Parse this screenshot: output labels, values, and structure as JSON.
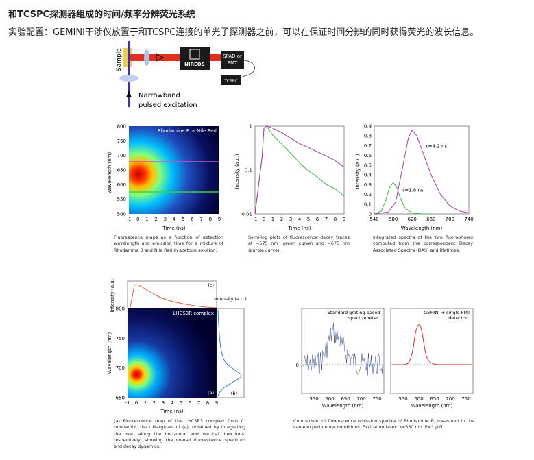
{
  "heading": "和TCSPC探测器组成的时间/频率分辨荧光系统",
  "description": "实验配置：GEMINI干涉仪放置于和TCSPC连接的单光子探测器之前，可以在保证时间分辨的同时获得荧光的波长信息。",
  "setup": {
    "sample": "Sample",
    "logo": "NIREOS",
    "spad": "SPAD or",
    "pmt": "PMT",
    "tcspc": "TCSPC",
    "excitation1": "Narrowband",
    "excitation2": "pulsed excitation"
  },
  "captions": {
    "map": "Fluorescence maps as a function of detection wavelength and emission time for a mixture of Rhodamine B and Nile Red in acetone solution.",
    "decay": "Semi-log plots of fluorescence decay traces at =575 nm (green curve) and =675 nm (purple curve).",
    "das": "Integrated spectra of the two fluorophores computed from the correspondent Decay Associated Spectra (DAS) and lifetimes.",
    "lhcs": "(a) Fluorescence map of the LHCSR3 complex from C. reinhardtii; (b-c) Marginals of (a), obtained by integrating the map along the horizontal and vertical directions, respectively, showing the overall fluorescence spectrum and decay dynamics.",
    "compare": "Comparison of fluorescence emission spectra of Rhodamine B, measured in the same experimental conditions. Excitation laser: λ=530 nm, P=1 μW."
  },
  "colors": {
    "green": "#3cb44b",
    "purple": "#a0409e",
    "red": "#d0402c",
    "navy": "#2a3a8a"
  },
  "chart_data": [
    {
      "type": "heatmap",
      "title": "Rhodamine B + Nile Red",
      "xlabel": "Time (ns)",
      "ylabel": "Wavelength (nm)",
      "xticks": [
        "-1",
        "0",
        "1",
        "2",
        "3",
        "4",
        "5",
        "6",
        "7",
        "8",
        "9"
      ],
      "yticks": [
        "800",
        "750",
        "700",
        "650",
        "600",
        "550",
        "500"
      ],
      "xlim": [
        -1,
        9
      ],
      "ylim": [
        500,
        800
      ],
      "peak": {
        "x": 0.3,
        "y": 620
      },
      "lines": [
        {
          "y": 675,
          "color": "#c040c0"
        },
        {
          "y": 575,
          "color": "#40c040"
        }
      ]
    },
    {
      "type": "line",
      "xlabel": "Time (ns)",
      "ylabel": "Intensity (a.u.)",
      "xticks": [
        "-1",
        "0",
        "1",
        "2",
        "3",
        "4",
        "5",
        "6",
        "7",
        "8",
        "9"
      ],
      "yticks": [
        "1",
        "0.1",
        "0.01"
      ],
      "xlim": [
        -1,
        9
      ],
      "ylim": [
        0.01,
        1
      ],
      "yscale": "log",
      "series": [
        {
          "color": "#3cb44b",
          "x": [
            -1,
            -0.2,
            0,
            0.3,
            1,
            2,
            3,
            4,
            5,
            6,
            7,
            8,
            9
          ],
          "values": [
            0.01,
            0.2,
            0.9,
            1,
            0.62,
            0.37,
            0.24,
            0.15,
            0.1,
            0.07,
            0.045,
            0.035,
            0.025
          ]
        },
        {
          "color": "#a0409e",
          "x": [
            -1,
            -0.2,
            0,
            0.3,
            1,
            2,
            3,
            4,
            5,
            6,
            7,
            8,
            9
          ],
          "values": [
            0.01,
            0.2,
            0.9,
            1,
            0.9,
            0.7,
            0.55,
            0.42,
            0.33,
            0.25,
            0.2,
            0.16,
            0.12
          ]
        }
      ]
    },
    {
      "type": "line",
      "xlabel": "Wavelength (nm)",
      "ylabel": "Intensity (a.u.)",
      "xticks": [
        "540",
        "580",
        "620",
        "660",
        "700",
        "740"
      ],
      "yticks": [
        "0.9",
        "0.8",
        "0.7",
        "0.6",
        "0.5",
        "0.4",
        "0.3",
        "0.2",
        "0.1",
        "0"
      ],
      "xlim": [
        540,
        740
      ],
      "ylim": [
        0,
        0.9
      ],
      "annotations": [
        {
          "text": "τ=4.2 ns",
          "x": 648,
          "y": 0.68
        },
        {
          "text": "τ=1.8 ns",
          "x": 598,
          "y": 0.23
        }
      ],
      "series": [
        {
          "color": "#3cb44b",
          "x": [
            540,
            555,
            565,
            572,
            580,
            588,
            595,
            605,
            620,
            640,
            660
          ],
          "values": [
            0,
            0.03,
            0.15,
            0.27,
            0.32,
            0.27,
            0.16,
            0.06,
            0.01,
            0,
            0
          ]
        },
        {
          "color": "#a0409e",
          "x": [
            540,
            570,
            585,
            600,
            612,
            620,
            630,
            645,
            660,
            680,
            700,
            720,
            740
          ],
          "values": [
            0,
            0.02,
            0.12,
            0.48,
            0.78,
            0.86,
            0.8,
            0.6,
            0.4,
            0.2,
            0.08,
            0.03,
            0.01
          ]
        }
      ]
    },
    {
      "type": "heatmap",
      "title": "LHCS3R complex",
      "xlabel": "Time (ns)",
      "ylabel": "Wavelength (nm)",
      "xticks": [
        "-1",
        "0",
        "1",
        "2",
        "3",
        "4",
        "5",
        "6",
        "7",
        "8",
        "9"
      ],
      "yticks": [
        "800",
        "750",
        "700",
        "650"
      ],
      "xlim": [
        -1,
        9
      ],
      "ylim": [
        650,
        800
      ],
      "peak": {
        "x": 0.2,
        "y": 690
      },
      "panels": {
        "a": "(a)",
        "b": "(b)",
        "c": "(c)"
      },
      "top_ylabel": "Intensity (a.u.)",
      "side_label": "Intensity (a.u.)"
    },
    {
      "type": "line",
      "title": "Standard grating-based spectrometer",
      "xlabel": "Wavelength (nm)",
      "xticks": [
        "550",
        "600",
        "650",
        "700",
        "750"
      ],
      "yticks": [
        "0"
      ],
      "xlim": [
        520,
        760
      ]
    },
    {
      "type": "line",
      "title": "GEMINI + single PMT detector",
      "xlabel": "Wavelength (nm)",
      "xticks": [
        "550",
        "600",
        "650",
        "700",
        "750"
      ],
      "yticks": [
        "0"
      ],
      "xlim": [
        520,
        760
      ]
    }
  ]
}
